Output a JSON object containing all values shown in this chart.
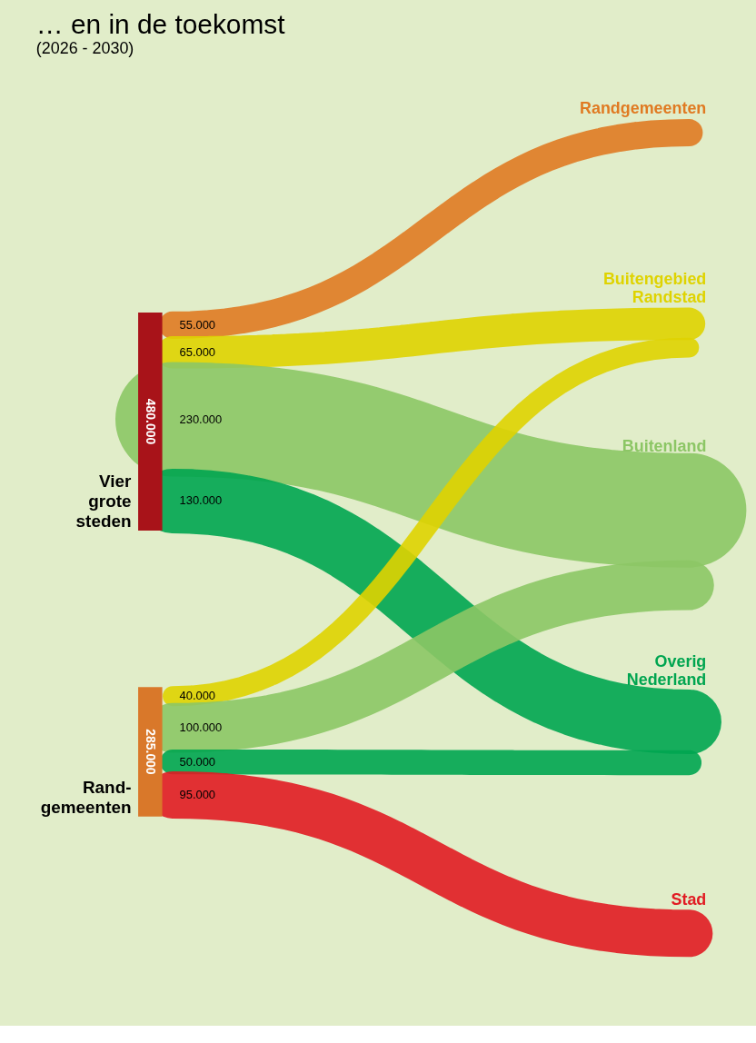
{
  "chart_data": {
    "type": "other",
    "title": "… en in de toekomst",
    "subtitle": "(2026 - 2030)",
    "categories": [
      "Vier\ngrote\nsteden",
      "Rand-\ngemeenten"
    ],
    "colors": [
      "#a81319",
      "#d9782a"
    ],
    "series": [
      {
        "name": "Randgemeenten",
        "color": "#e07a22",
        "values": [
          55000,
          null
        ],
        "value_labels": [
          "55.000",
          null
        ]
      },
      {
        "name": "Buitengebied\nRandstad",
        "color": "#dfd300",
        "values": [
          65000,
          40000
        ],
        "value_labels": [
          "65.000",
          "40.000"
        ]
      },
      {
        "name": "Buitenland",
        "color": "#8cc665",
        "values": [
          230000,
          100000
        ],
        "value_labels": [
          "230.000",
          "100.000"
        ]
      },
      {
        "name": "Overig\nNederland",
        "color": "#00a550",
        "values": [
          130000,
          50000
        ],
        "value_labels": [
          "130.000",
          "50.000"
        ]
      },
      {
        "name": "Stad",
        "color": "#e11b22",
        "values": [
          null,
          95000
        ],
        "value_labels": [
          null,
          "95.000"
        ]
      }
    ],
    "annotations": [
      "480.000",
      "285.000"
    ]
  }
}
